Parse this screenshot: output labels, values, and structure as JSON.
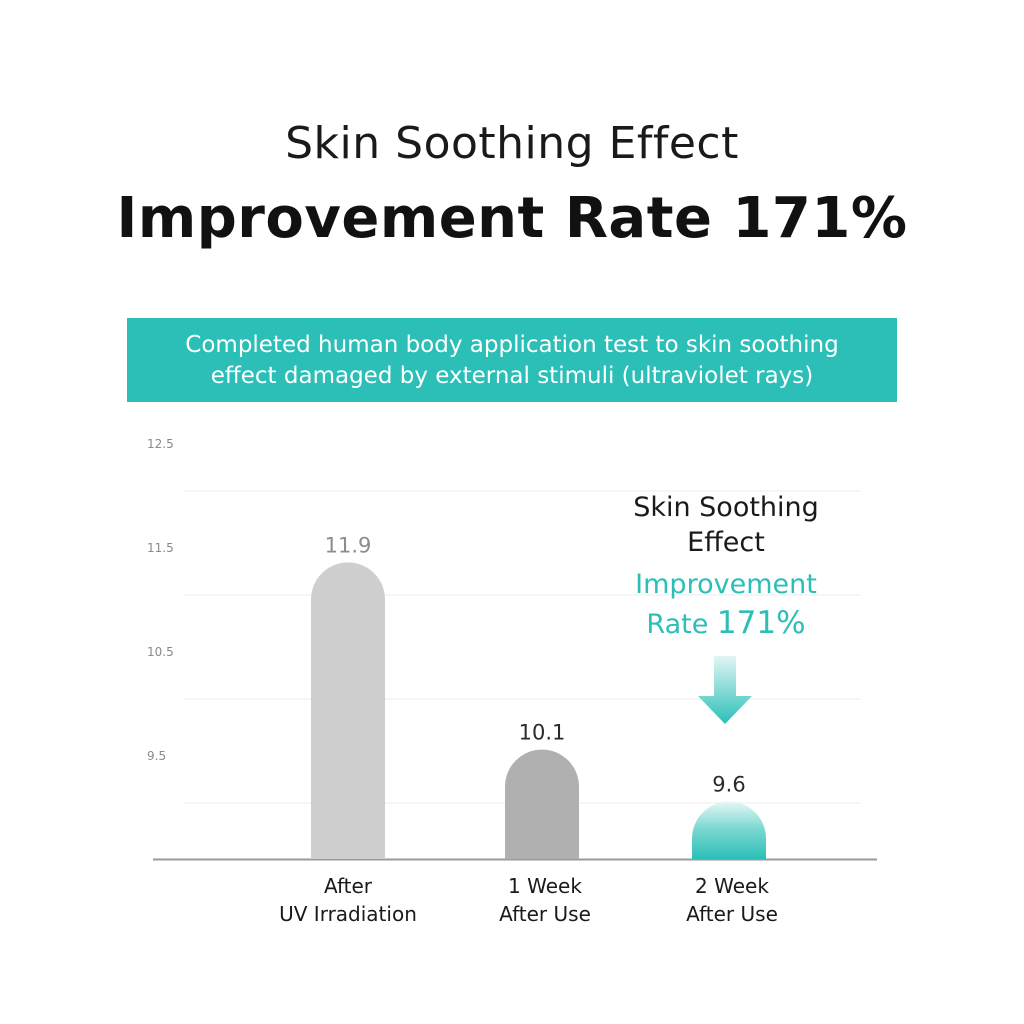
{
  "headline": {
    "line1": "Skin Soothing Effect",
    "line2": "Improvement Rate 171%"
  },
  "banner": {
    "line1": "Completed human body application test to skin soothing",
    "line2": "effect damaged by external stimuli (ultraviolet rays)",
    "color": "#2bbfb7"
  },
  "callout": {
    "line1": "Skin Soothing",
    "line2": "Effect",
    "line3": "Improvement",
    "line4_prefix": "Rate ",
    "line4_value": "171%",
    "arrow_icon": "arrow-down-icon"
  },
  "chart_data": {
    "type": "bar",
    "categories": [
      [
        "After",
        "UV Irradiation"
      ],
      [
        "1 Week",
        "After Use"
      ],
      [
        "2 Week",
        "After Use"
      ]
    ],
    "values": [
      11.9,
      10.1,
      9.6
    ],
    "value_labels": [
      "11.9",
      "10.1",
      "9.6"
    ],
    "yticks": [
      12.5,
      11.5,
      10.5,
      9.5
    ],
    "ytick_labels": [
      "12.5",
      "11.5",
      "10.5",
      "9.5"
    ],
    "ylim": [
      8.5,
      12.5
    ],
    "grid": true,
    "colors": [
      "#cfcfcf",
      "#b0b0b0",
      "#2bbfb7"
    ]
  }
}
